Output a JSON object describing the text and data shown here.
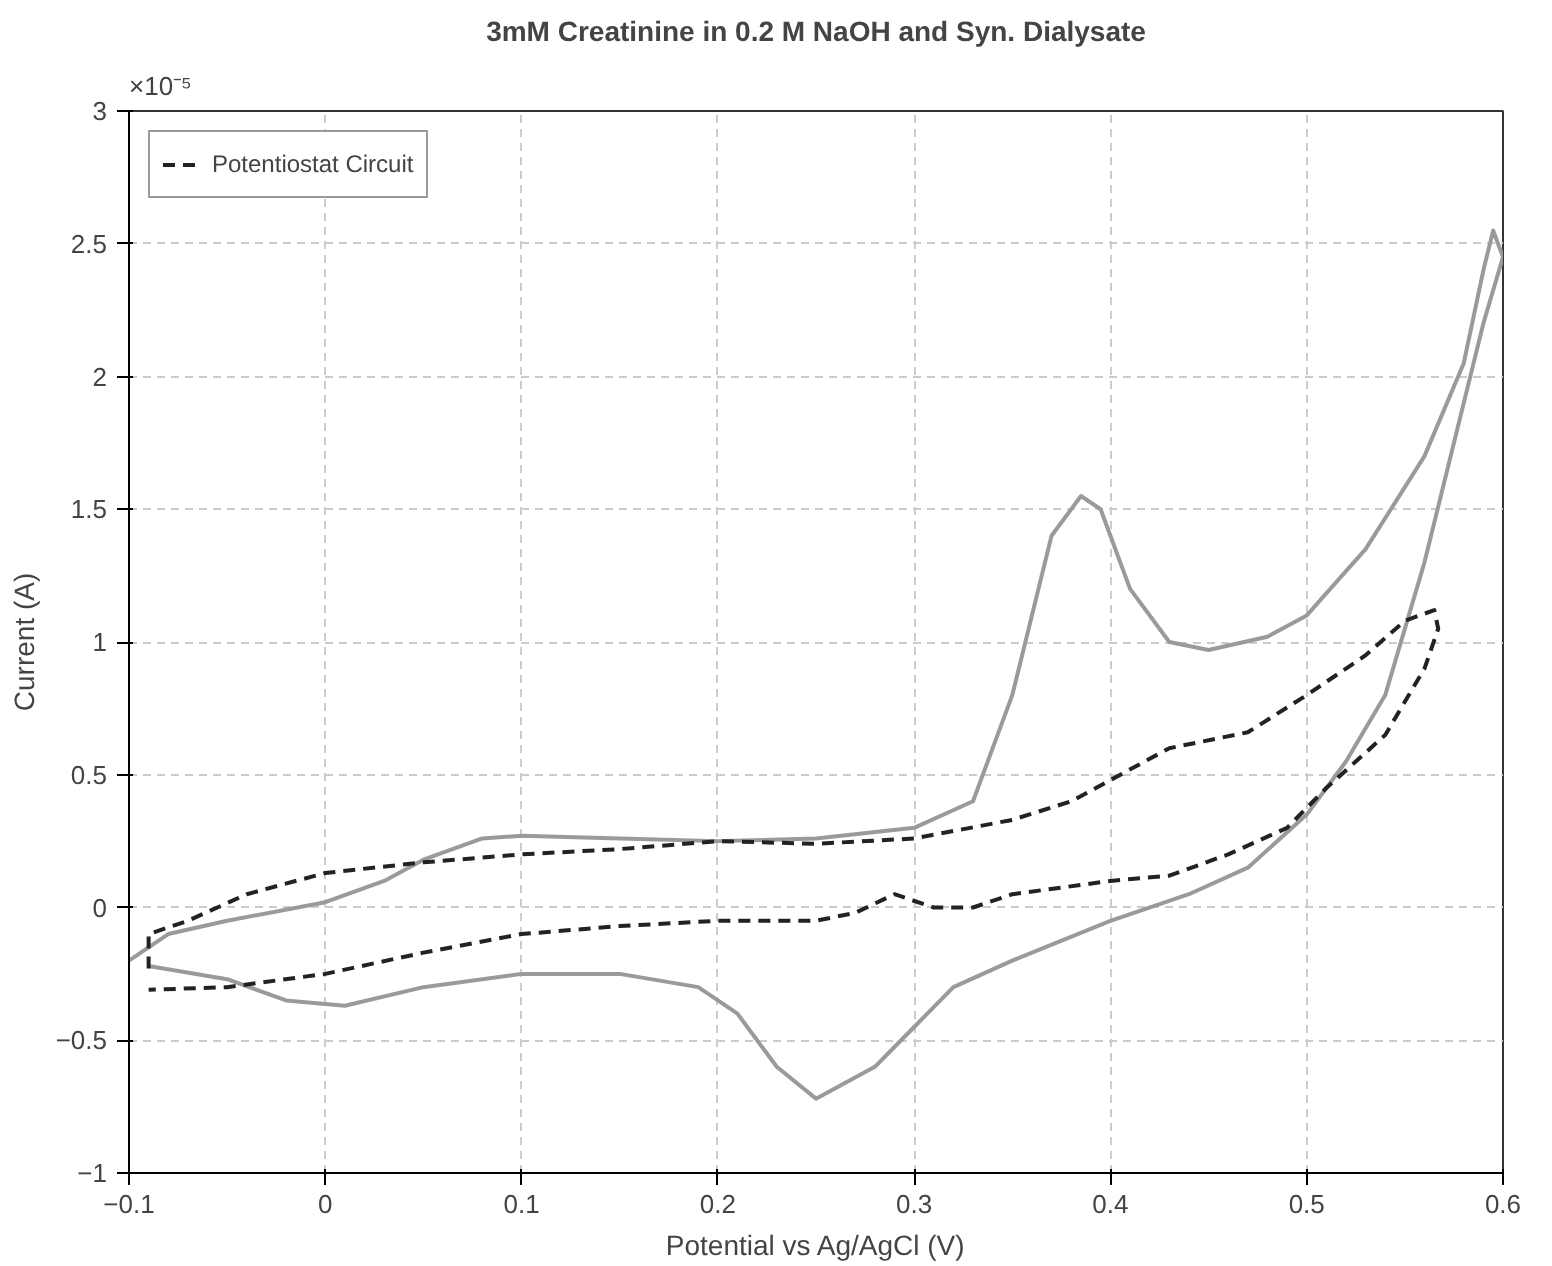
{
  "chart_data": {
    "type": "line",
    "title": "3mM Creatinine in 0.2 M NaOH and Syn. Dialysate",
    "xlabel": "Potential vs Ag/AgCl (V)",
    "ylabel": "Current (A)",
    "annotations": [
      "×10⁻⁵"
    ],
    "xlim": [
      -0.1,
      0.6
    ],
    "xticks": [
      -0.1,
      0,
      0.1,
      0.2,
      0.3,
      0.4,
      0.5,
      0.6
    ],
    "ylim": [
      -1,
      3
    ],
    "yticks": [
      -1,
      -0.5,
      0,
      0.5,
      1,
      1.5,
      2,
      2.5,
      3
    ],
    "grid": true,
    "legend": "top left",
    "series": [
      {
        "color": "#9a9a9a",
        "line_style": "solid",
        "x": [
          -0.1,
          -0.08,
          -0.05,
          0,
          0.03,
          0.05,
          0.08,
          0.1,
          0.15,
          0.2,
          0.25,
          0.3,
          0.33,
          0.35,
          0.36,
          0.37,
          0.385,
          0.395,
          0.41,
          0.43,
          0.45,
          0.48,
          0.5,
          0.53,
          0.56,
          0.58,
          0.59,
          0.595,
          0.6,
          0.59,
          0.58,
          0.56,
          0.54,
          0.52,
          0.5,
          0.47,
          0.44,
          0.4,
          0.35,
          0.32,
          0.3,
          0.28,
          0.25,
          0.23,
          0.21,
          0.19,
          0.15,
          0.1,
          0.05,
          0.01,
          -0.02,
          -0.05,
          -0.09
        ],
        "values": [
          -0.2,
          -0.1,
          -0.05,
          0.02,
          0.1,
          0.18,
          0.26,
          0.27,
          0.26,
          0.25,
          0.26,
          0.3,
          0.4,
          0.8,
          1.1,
          1.4,
          1.55,
          1.5,
          1.2,
          1.0,
          0.97,
          1.02,
          1.1,
          1.35,
          1.7,
          2.05,
          2.4,
          2.55,
          2.45,
          2.2,
          1.9,
          1.3,
          0.8,
          0.55,
          0.35,
          0.15,
          0.05,
          -0.05,
          -0.2,
          -0.3,
          -0.45,
          -0.6,
          -0.72,
          -0.6,
          -0.4,
          -0.3,
          -0.25,
          -0.25,
          -0.3,
          -0.37,
          -0.35,
          -0.27,
          -0.22
        ]
      },
      {
        "name": "Potentiostat Circuit",
        "color": "#222222",
        "line_style": "dashed",
        "x": [
          -0.09,
          -0.09,
          -0.07,
          -0.04,
          0,
          0.05,
          0.1,
          0.15,
          0.2,
          0.25,
          0.3,
          0.35,
          0.38,
          0.4,
          0.43,
          0.47,
          0.5,
          0.53,
          0.55,
          0.565,
          0.567,
          0.56,
          0.54,
          0.51,
          0.49,
          0.46,
          0.43,
          0.4,
          0.35,
          0.33,
          0.31,
          0.29,
          0.27,
          0.25,
          0.2,
          0.15,
          0.1,
          0.05,
          0,
          -0.05,
          -0.09
        ],
        "values": [
          -0.23,
          -0.1,
          -0.05,
          0.05,
          0.13,
          0.17,
          0.2,
          0.22,
          0.25,
          0.24,
          0.26,
          0.33,
          0.4,
          0.48,
          0.6,
          0.66,
          0.8,
          0.95,
          1.08,
          1.12,
          1.05,
          0.9,
          0.65,
          0.45,
          0.3,
          0.2,
          0.12,
          0.1,
          0.05,
          0.0,
          0.0,
          0.05,
          -0.02,
          -0.05,
          -0.05,
          -0.07,
          -0.1,
          -0.17,
          -0.25,
          -0.3,
          -0.31
        ]
      }
    ]
  }
}
